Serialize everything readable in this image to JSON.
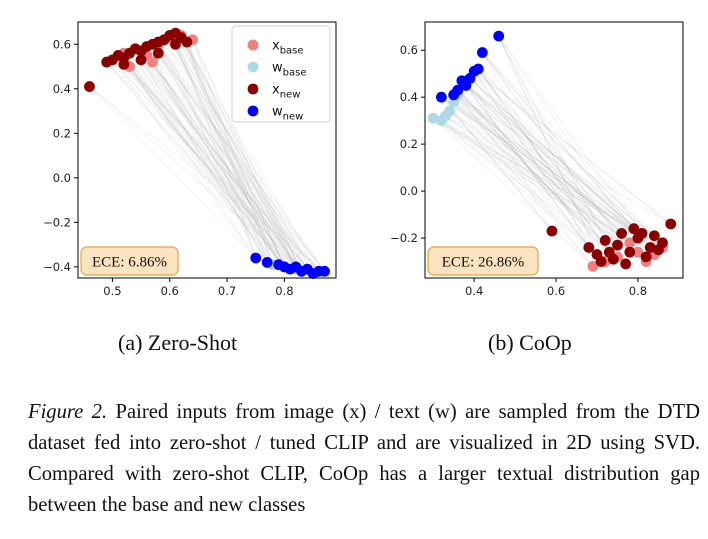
{
  "figure": {
    "subcaptions": [
      "(a) Zero-Shot",
      "(b) CoOp"
    ],
    "caption_label": "Figure 2.",
    "caption_text": "Paired inputs from image (x) / text (w) are sampled from the DTD dataset fed into zero-shot / tuned CLIP and are visualized in 2D using SVD. Compared with zero-shot CLIP, CoOp has a larger textual distribution gap between the base and new classes"
  },
  "legend": {
    "placement": "upper-right of panel (a)",
    "entries": [
      {
        "label": "x",
        "sub": "base",
        "color": "#f08080"
      },
      {
        "label": "w",
        "sub": "base",
        "color": "#add8e6"
      },
      {
        "label": "x",
        "sub": "new",
        "color": "#8b0000"
      },
      {
        "label": "w",
        "sub": "new",
        "color": "#0000ff"
      }
    ]
  },
  "colors": {
    "x_base": "#f08080",
    "w_base": "#add8e6",
    "x_new": "#8b0000",
    "w_new": "#0000ff",
    "pair_line": "#9a9a9a",
    "ece_box_fill": "#fbe3c0",
    "ece_box_edge": "#e8a33d"
  },
  "chart_data": [
    {
      "type": "scatter",
      "title": "",
      "panel": "(a) Zero-Shot",
      "xlim": [
        0.44,
        0.89
      ],
      "ylim": [
        -0.45,
        0.7
      ],
      "xticks": [
        0.5,
        0.6,
        0.7,
        0.8
      ],
      "yticks": [
        -0.4,
        -0.2,
        0.0,
        0.2,
        0.4,
        0.6
      ],
      "tick_labels_x": [
        "0.5",
        "0.6",
        "0.7",
        "0.8"
      ],
      "tick_labels_y": [
        "−0.4",
        "−0.2",
        "0.0",
        "0.2",
        "0.4",
        "0.6"
      ],
      "annotation": "ECE: 6.86%",
      "grid": false,
      "series": [
        {
          "name": "x_base",
          "x": [
            0.52,
            0.56,
            0.58,
            0.6,
            0.62,
            0.63,
            0.64,
            0.57,
            0.53
          ],
          "y": [
            0.56,
            0.55,
            0.6,
            0.63,
            0.64,
            0.61,
            0.62,
            0.52,
            0.5
          ]
        },
        {
          "name": "w_base",
          "x": [
            0.78,
            0.8,
            0.82,
            0.83
          ],
          "y": [
            -0.39,
            -0.4,
            -0.41,
            -0.42
          ]
        },
        {
          "name": "x_new",
          "x": [
            0.46,
            0.49,
            0.5,
            0.51,
            0.52,
            0.53,
            0.54,
            0.55,
            0.56,
            0.57,
            0.58,
            0.59,
            0.6,
            0.61,
            0.62,
            0.63,
            0.52,
            0.55,
            0.58,
            0.61
          ],
          "y": [
            0.41,
            0.52,
            0.53,
            0.55,
            0.54,
            0.56,
            0.58,
            0.57,
            0.59,
            0.6,
            0.61,
            0.62,
            0.64,
            0.65,
            0.63,
            0.61,
            0.51,
            0.53,
            0.56,
            0.6
          ]
        },
        {
          "name": "w_new",
          "x": [
            0.75,
            0.77,
            0.79,
            0.8,
            0.81,
            0.82,
            0.83,
            0.84,
            0.85,
            0.86,
            0.87
          ],
          "y": [
            -0.36,
            -0.38,
            -0.39,
            -0.4,
            -0.41,
            -0.4,
            -0.42,
            -0.41,
            -0.43,
            -0.42,
            -0.42
          ]
        }
      ]
    },
    {
      "type": "scatter",
      "title": "",
      "panel": "(b) CoOp",
      "xlim": [
        0.28,
        0.91
      ],
      "ylim": [
        -0.37,
        0.72
      ],
      "xticks": [
        0.4,
        0.6,
        0.8
      ],
      "yticks": [
        -0.2,
        0.0,
        0.2,
        0.4,
        0.6
      ],
      "tick_labels_x": [
        "0.4",
        "0.6",
        "0.8"
      ],
      "tick_labels_y": [
        "−0.2",
        "0.0",
        "0.2",
        "0.4",
        "0.6"
      ],
      "annotation": "ECE: 26.86%",
      "grid": false,
      "series": [
        {
          "name": "x_base",
          "x": [
            0.69,
            0.72,
            0.75,
            0.78,
            0.8,
            0.82,
            0.84,
            0.86,
            0.79
          ],
          "y": [
            -0.32,
            -0.3,
            -0.28,
            -0.22,
            -0.26,
            -0.3,
            -0.27,
            -0.24,
            -0.16
          ]
        },
        {
          "name": "w_base",
          "x": [
            0.3,
            0.32,
            0.33,
            0.34,
            0.35,
            0.36
          ],
          "y": [
            0.31,
            0.3,
            0.32,
            0.34,
            0.38,
            0.41
          ]
        },
        {
          "name": "x_new",
          "x": [
            0.59,
            0.68,
            0.7,
            0.72,
            0.74,
            0.76,
            0.78,
            0.8,
            0.82,
            0.84,
            0.85,
            0.86,
            0.88,
            0.71,
            0.75,
            0.79,
            0.83,
            0.77,
            0.81,
            0.73
          ],
          "y": [
            -0.17,
            -0.24,
            -0.27,
            -0.21,
            -0.29,
            -0.18,
            -0.26,
            -0.2,
            -0.28,
            -0.19,
            -0.25,
            -0.22,
            -0.14,
            -0.3,
            -0.23,
            -0.16,
            -0.24,
            -0.31,
            -0.18,
            -0.26
          ]
        },
        {
          "name": "w_new",
          "x": [
            0.32,
            0.35,
            0.36,
            0.37,
            0.38,
            0.39,
            0.4,
            0.41,
            0.42,
            0.46
          ],
          "y": [
            0.4,
            0.41,
            0.43,
            0.47,
            0.45,
            0.48,
            0.51,
            0.52,
            0.59,
            0.66
          ]
        }
      ]
    }
  ]
}
